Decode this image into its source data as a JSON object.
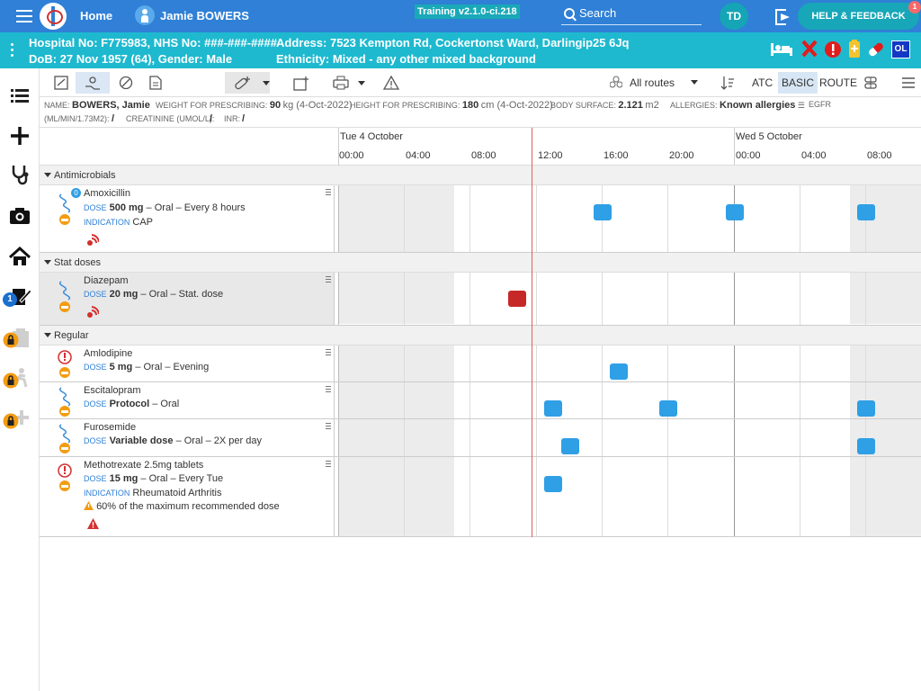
{
  "topbar": {
    "home": "Home",
    "patient": "Jamie BOWERS",
    "training": "Training v2.1.0-ci.218",
    "search": "Search",
    "user_initials": "TD",
    "help": "HELP & FEEDBACK",
    "help_badge": "1"
  },
  "patient_bar": {
    "line1": "Hospital No: F775983, NHS No: ###-###-####",
    "line2": "DoB: 27 Nov 1957 (64), Gender: Male",
    "address": "Address: 7523 Kempton Rd, Cockertonst Ward, Darlingip25 6Jq",
    "ethnicity": "Ethnicity: Mixed - any other mixed background",
    "ol_label": "OL"
  },
  "sidebar": {
    "badge_count": "1"
  },
  "toolbar": {
    "routes": "All routes",
    "atc": "ATC",
    "basic": "BASIC",
    "route": "ROUTE"
  },
  "info": {
    "name_lbl": "NAME:",
    "name": "BOWERS, Jamie",
    "weight_lbl": "WEIGHT FOR PRESCRIBING:",
    "weight": "90",
    "weight_unit": "kg (4-Oct-2022)",
    "height_lbl": "HEIGHT FOR PRESCRIBING:",
    "height": "180",
    "height_unit": "cm (4-Oct-2022)",
    "bsa_lbl": "BODY SURFACE:",
    "bsa": "2.121",
    "bsa_unit": "m2",
    "allergies_lbl": "ALLERGIES:",
    "allergies": "Known allergies",
    "egfr_lbl": "EGFR",
    "egfr_unit": "(ML/MIN/1.73M2):",
    "egfr": "/",
    "creat_lbl": "CREATININE (UMOL/L):",
    "creat": "/",
    "inr_lbl": "INR:",
    "inr": "/"
  },
  "timeline": {
    "days": [
      "Tue 4 October",
      "Wed 5 October"
    ],
    "ticks": [
      "00:00",
      "04:00",
      "08:00",
      "12:00",
      "16:00",
      "20:00",
      "00:00",
      "04:00",
      "08:00"
    ]
  },
  "sections": {
    "antimicrobials": "Antimicrobials",
    "stat": "Stat doses",
    "regular": "Regular"
  },
  "meds": {
    "amox": {
      "name": "Amoxicillin",
      "dose_lbl": "DOSE",
      "dose": "500 mg",
      "dose_rest": " – Oral – Every 8 hours",
      "ind_lbl": "INDICATION",
      "ind": "CAP",
      "badge": "0"
    },
    "diaz": {
      "name": "Diazepam",
      "dose_lbl": "DOSE",
      "dose": "20 mg",
      "dose_rest": " – Oral – Stat. dose"
    },
    "amlo": {
      "name": "Amlodipine",
      "dose_lbl": "DOSE",
      "dose": "5 mg",
      "dose_rest": " – Oral – Evening"
    },
    "esci": {
      "name": "Escitalopram",
      "dose_lbl": "DOSE",
      "dose": "Protocol",
      "dose_rest": " – Oral"
    },
    "furo": {
      "name": "Furosemide",
      "dose_lbl": "DOSE",
      "dose": "Variable dose",
      "dose_rest": " – Oral – 2X per day"
    },
    "metho": {
      "name": "Methotrexate 2.5mg tablets",
      "dose_lbl": "DOSE",
      "dose": "15 mg",
      "dose_rest": " – Oral – Every Tue",
      "ind_lbl": "INDICATION",
      "ind": "Rheumatoid Arthritis",
      "warning": "60% of the maximum recommended dose"
    }
  },
  "colors": {
    "topbar": "#2f80d6",
    "patient_bar": "#1eb9cf",
    "dose": "#2f9fe6",
    "stat_dose": "#c62828"
  }
}
